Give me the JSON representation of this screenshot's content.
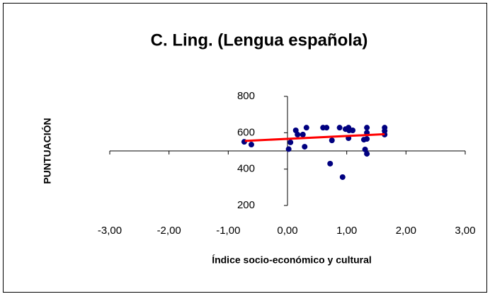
{
  "chart_data": {
    "type": "scatter",
    "title": "C. Ling. (Lengua española)",
    "x_label": "Índice socio-económico y cultural",
    "y_label": "PUNTUACIÓN",
    "series": [
      {
        "color": "#000080",
        "x": [
          -0.73,
          -0.61,
          0.05,
          0.02,
          0.14,
          0.17,
          0.26,
          0.29,
          0.32,
          0.6,
          0.66,
          0.72,
          0.75,
          0.88,
          0.93,
          0.98,
          1.03,
          1.04,
          1.03,
          1.1,
          1.29,
          1.34,
          1.34,
          1.31,
          1.34,
          1.34,
          1.64,
          1.64,
          1.64
        ],
        "values": [
          550,
          535,
          547,
          510,
          613,
          590,
          590,
          523,
          628,
          628,
          628,
          430,
          558,
          628,
          356,
          620,
          628,
          613,
          570,
          613,
          562,
          628,
          566,
          508,
          484,
          600,
          628,
          610,
          590
        ]
      }
    ],
    "trendline": {
      "color": "#ff0000",
      "x": [
        -0.72,
        1.64
      ],
      "values": [
        555,
        592
      ]
    },
    "xlim": [
      -3,
      3
    ],
    "xticks": [
      {
        "value": -3,
        "label": "-3,00"
      },
      {
        "value": -2,
        "label": "-2,00"
      },
      {
        "value": -1,
        "label": "-1,00"
      },
      {
        "value": 0,
        "label": "0,00"
      },
      {
        "value": 1,
        "label": "1,00"
      },
      {
        "value": 2,
        "label": "2,00"
      },
      {
        "value": 3,
        "label": "3,00"
      }
    ],
    "ylim": [
      200,
      800
    ],
    "yticks": [
      200,
      400,
      600,
      800
    ],
    "x_axis_crosses_at": 500
  }
}
